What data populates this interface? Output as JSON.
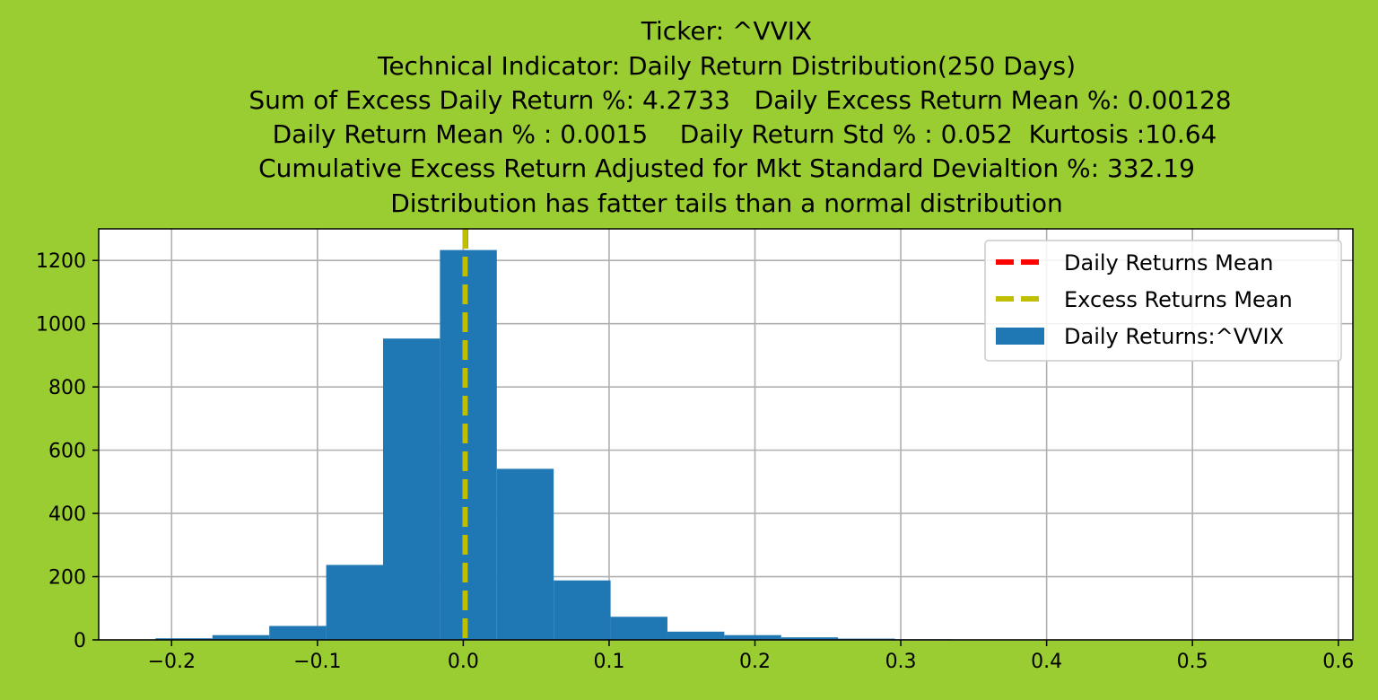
{
  "figure": {
    "background_color": "#9acd32",
    "plot_background": "#ffffff"
  },
  "chart_data": {
    "type": "bar",
    "title_lines": [
      "Ticker: ^VVIX",
      "Technical Indicator: Daily Return Distribution(250 Days)",
      "Sum of Excess Daily Return %: 4.2733   Daily Excess Return Mean %: 0.00128",
      "Daily Return Mean % : 0.0015    Daily Return Std % : 0.052  Kurtosis :10.64",
      "Cumulative Excess Return Adjusted for Mkt Standard Devialtion %: 332.19",
      "Distribution has fatter tails than a normal distribution"
    ],
    "xlabel": "",
    "ylabel": "",
    "xlim": [
      -0.25,
      0.61
    ],
    "ylim": [
      0,
      1300
    ],
    "grid": true,
    "legend_position": "top-right",
    "x_ticks": [
      -0.2,
      -0.1,
      0.0,
      0.1,
      0.2,
      0.3,
      0.4,
      0.5,
      0.6
    ],
    "x_tick_labels": [
      "−0.2",
      "−0.1",
      "0.0",
      "0.1",
      "0.2",
      "0.3",
      "0.4",
      "0.5",
      "0.6"
    ],
    "y_ticks": [
      0,
      200,
      400,
      600,
      800,
      1000,
      1200
    ],
    "y_tick_labels": [
      "0",
      "200",
      "400",
      "600",
      "800",
      "1000",
      "1200"
    ],
    "histogram": {
      "name": "Daily Returns:^VVIX",
      "color": "#1f77b4",
      "bin_edges": [
        -0.211,
        -0.172,
        -0.133,
        -0.094,
        -0.055,
        -0.016,
        0.023,
        0.062,
        0.101,
        0.14,
        0.179,
        0.218,
        0.257,
        0.296,
        0.335,
        0.374,
        0.413,
        0.452,
        0.491,
        0.53,
        0.569
      ],
      "counts": [
        5,
        15,
        44,
        237,
        953,
        1233,
        541,
        188,
        73,
        26,
        15,
        8,
        4,
        2,
        1,
        1,
        1,
        0,
        0,
        1
      ]
    },
    "lines": [
      {
        "name": "Daily Returns Mean",
        "x": 0.0015,
        "color": "#ff0000",
        "style": "dashed"
      },
      {
        "name": "Excess Returns Mean",
        "x": 0.00128,
        "color": "#bfbf00",
        "style": "dashed"
      }
    ],
    "legend": [
      {
        "label": "Daily Returns Mean",
        "kind": "line",
        "color": "#ff0000"
      },
      {
        "label": "Excess Returns Mean",
        "kind": "line",
        "color": "#bfbf00"
      },
      {
        "label": "Daily Returns:^VVIX",
        "kind": "patch",
        "color": "#1f77b4"
      }
    ]
  }
}
